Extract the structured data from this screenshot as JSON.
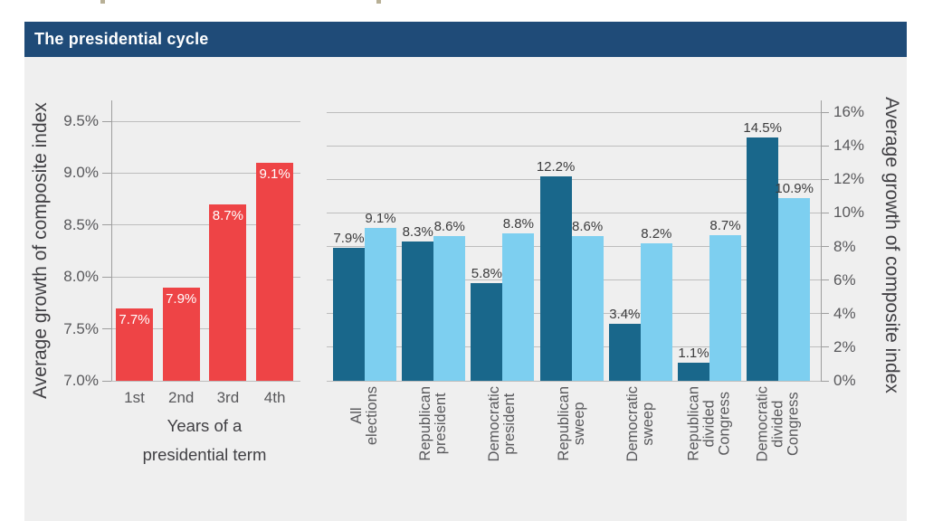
{
  "title": "The presidential cycle",
  "colors": {
    "banner_bg": "#1f4b78",
    "panel_bg": "#efefef",
    "gridline": "#bdbdbd",
    "axis": "#9e9e9e",
    "tick_text": "#58585b",
    "axis_title_text": "#414044",
    "value_label_text": "#3b3b3c",
    "bar_red": "#ee4446",
    "bar_dark_blue": "#19678b",
    "bar_light_blue": "#7dcff0"
  },
  "chart_data": [
    {
      "type": "bar",
      "title": "",
      "categories": [
        "1st",
        "2nd",
        "3rd",
        "4th"
      ],
      "values": [
        7.7,
        7.9,
        8.7,
        9.1
      ],
      "value_labels": [
        "7.7%",
        "7.9%",
        "8.7%",
        "9.1%"
      ],
      "xlabel": "Years of a\npresidential term",
      "ylabel": "Average growth of composite index",
      "ylim": [
        7.0,
        9.5
      ],
      "yticks": [
        "7.0%",
        "7.5%",
        "8.0%",
        "8.5%",
        "9.0%",
        "9.5%"
      ],
      "grid": true,
      "legend_position": "none",
      "bar_color": "#ee4446",
      "value_label_color": "#ffffff"
    },
    {
      "type": "bar",
      "title": "",
      "categories": [
        "All\nelections",
        "Republican\npresident",
        "Democratic\npresident",
        "Republican\nsweep",
        "Democratic\nsweep",
        "Republican\ndivided\nCongress",
        "Democratic\ndivided\nCongress"
      ],
      "series": [
        {
          "name": "series-dark",
          "color": "#19678b",
          "values": [
            7.9,
            8.3,
            5.8,
            12.2,
            3.4,
            1.1,
            14.5
          ],
          "value_labels": [
            "7.9%",
            "8.3%",
            "5.8%",
            "12.2%",
            "3.4%",
            "1.1%",
            "14.5%"
          ]
        },
        {
          "name": "series-light",
          "color": "#7dcff0",
          "values": [
            9.1,
            8.6,
            8.8,
            8.6,
            8.2,
            8.7,
            10.9
          ],
          "value_labels": [
            "9.1%",
            "8.6%",
            "8.8%",
            "8.6%",
            "8.2%",
            "8.7%",
            "10.9%"
          ]
        }
      ],
      "xlabel": "",
      "ylabel": "Average growth of composite index",
      "ylabel_position": "right",
      "ylim": [
        0,
        16
      ],
      "yticks": [
        "0%",
        "2%",
        "4%",
        "6%",
        "8%",
        "10%",
        "12%",
        "14%",
        "16%"
      ],
      "grid": true,
      "legend_position": "none"
    }
  ]
}
